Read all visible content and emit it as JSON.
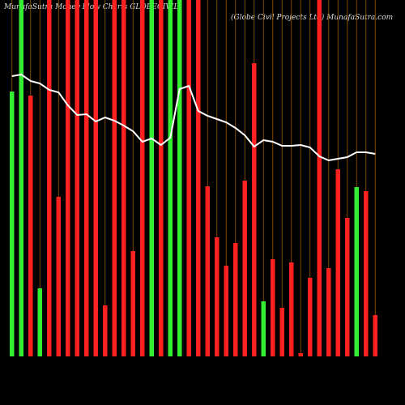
{
  "chart_data": {
    "type": "bar",
    "title": "MunafaSutra Money Flow Charts GLOBECIVIL",
    "subtitle": "(Globe Civil Projects Ltd) MunafaSutra.com",
    "categories": [
      null,
      null,
      null,
      null,
      null,
      null,
      null,
      null,
      null,
      null,
      null,
      null,
      null,
      null,
      null,
      null,
      null,
      null,
      null,
      null,
      null,
      null,
      null,
      null,
      null,
      null,
      null,
      null,
      null,
      null,
      null,
      null,
      null,
      null,
      null,
      null,
      null,
      null,
      null,
      null
    ],
    "values": [
      327,
      440,
      322,
      84,
      440,
      197,
      440,
      440,
      440,
      440,
      63,
      440,
      440,
      130,
      440,
      440,
      440,
      440,
      440,
      440,
      440,
      210,
      147,
      112,
      140,
      217,
      362,
      68,
      120,
      60,
      116,
      4,
      97,
      440,
      109,
      231,
      171,
      209,
      204,
      51
    ],
    "colors": [
      "#33ee33",
      "#33ee33",
      "#ff2020",
      "#33ee33",
      "#ff2020",
      "#ff2020",
      "#ff2020",
      "#ff2020",
      "#ff2020",
      "#ff2020",
      "#ff2020",
      "#ff2020",
      "#ff2020",
      "#ff2020",
      "#ff2020",
      "#33ee33",
      "#ff2020",
      "#33ee33",
      "#33ee33",
      "#ff2020",
      "#ff2020",
      "#ff2020",
      "#ff2020",
      "#ff2020",
      "#ff2020",
      "#ff2020",
      "#ff2020",
      "#33ee33",
      "#ff2020",
      "#ff2020",
      "#ff2020",
      "#ff2020",
      "#ff2020",
      "#ff2020",
      "#ff2020",
      "#ff2020",
      "#ff2020",
      "#33ee33",
      "#ff2020",
      "#ff2020"
    ],
    "line": {
      "color": "#ffffff",
      "values": [
        346,
        348,
        340,
        337,
        329,
        326,
        310,
        298,
        299,
        290,
        295,
        291,
        285,
        278,
        265,
        269,
        261,
        270,
        330,
        334,
        303,
        297,
        293,
        289,
        282,
        273,
        259,
        267,
        265,
        260,
        260,
        261,
        258,
        247,
        242,
        244,
        246,
        252,
        252,
        250
      ]
    },
    "ylim": [
      0,
      440
    ]
  }
}
